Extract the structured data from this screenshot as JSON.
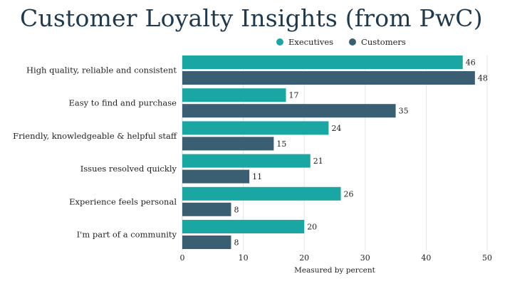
{
  "title": "Customer Loyalty Insights (from PwC)",
  "chart_data": {
    "type": "bar",
    "orientation": "horizontal",
    "title": "Customer Loyalty Insights (from PwC)",
    "xlabel": "Measured by percent",
    "ylabel": "",
    "xlim": [
      0,
      50
    ],
    "xticks": [
      0,
      10,
      20,
      30,
      40,
      50
    ],
    "grid": true,
    "legend_position": "top",
    "categories": [
      "High quality, reliable and consistent",
      "Easy to find and purchase",
      "Friendly, knowledgeable & helpful staff",
      "Issues resolved quickly",
      "Experience feels personal",
      "I'm part of a community"
    ],
    "series": [
      {
        "name": "Executives",
        "color": "#1aa6a3",
        "values": [
          46,
          17,
          24,
          21,
          26,
          20
        ]
      },
      {
        "name": "Customers",
        "color": "#3b5f72",
        "values": [
          48,
          35,
          15,
          11,
          8,
          8
        ]
      }
    ]
  }
}
